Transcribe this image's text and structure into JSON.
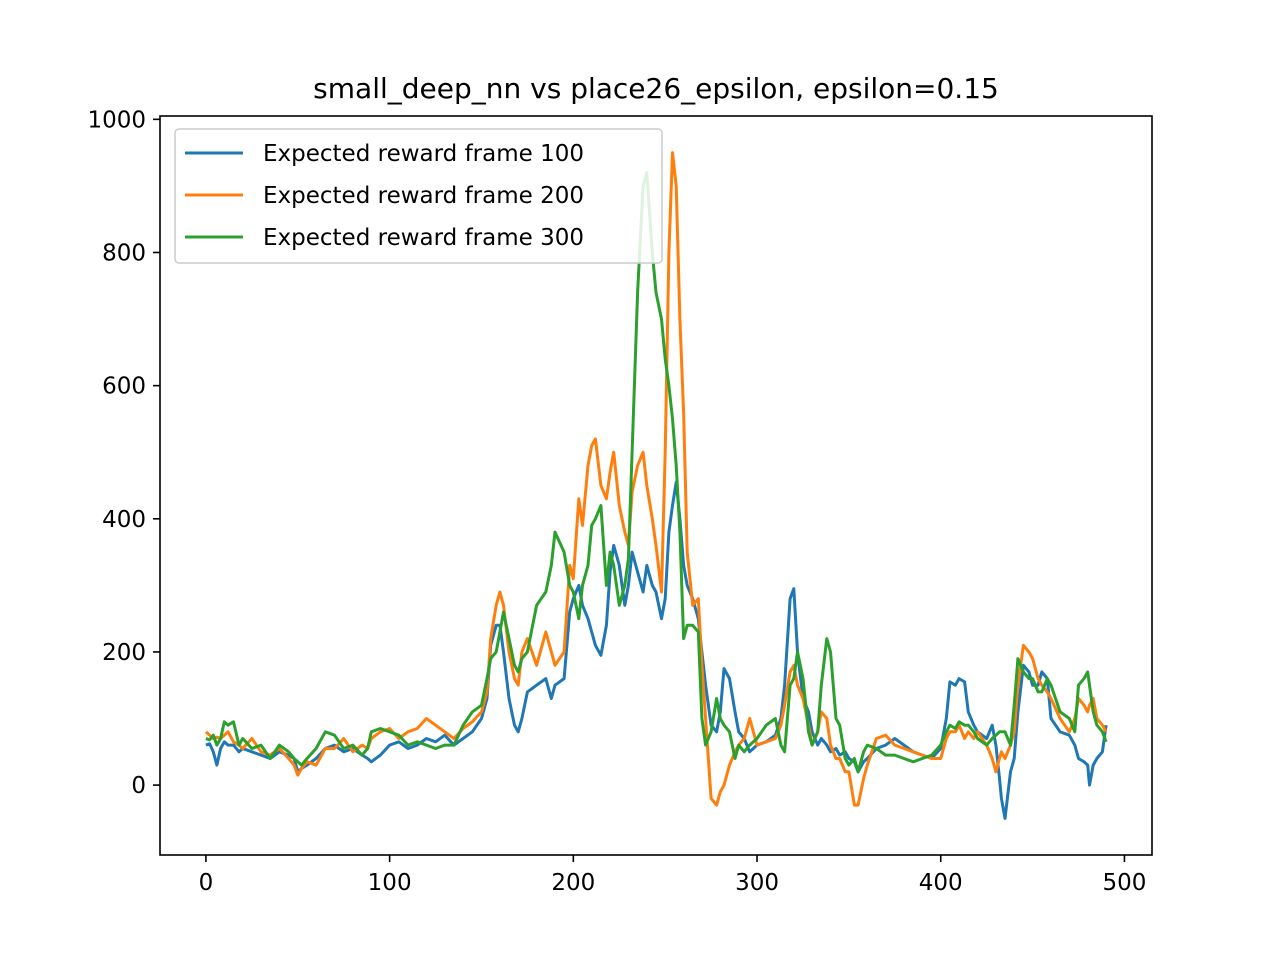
{
  "chart_data": {
    "type": "line",
    "title": "small_deep_nn vs place26_epsilon, epsilon=0.15",
    "xlabel": "",
    "ylabel": "",
    "xlim": [
      -25,
      515
    ],
    "ylim": [
      -105,
      1005
    ],
    "xticks": [
      0,
      100,
      200,
      300,
      400,
      500
    ],
    "yticks": [
      0,
      200,
      400,
      600,
      800,
      1000
    ],
    "legend_position": "top-left",
    "grid": false,
    "series": [
      {
        "name": "Expected reward frame 100",
        "color": "#1f77b4",
        "x": [
          0,
          2,
          4,
          6,
          8,
          10,
          12,
          15,
          18,
          20,
          25,
          30,
          35,
          40,
          45,
          48,
          50,
          52,
          55,
          60,
          65,
          70,
          75,
          80,
          85,
          88,
          90,
          95,
          100,
          105,
          110,
          115,
          120,
          125,
          130,
          135,
          140,
          145,
          150,
          153,
          155,
          158,
          160,
          162,
          165,
          168,
          170,
          172,
          175,
          180,
          185,
          188,
          190,
          195,
          198,
          200,
          203,
          205,
          208,
          210,
          212,
          215,
          218,
          220,
          222,
          225,
          228,
          230,
          232,
          235,
          238,
          240,
          243,
          245,
          248,
          250,
          252,
          254,
          256,
          258,
          260,
          262,
          265,
          268,
          270,
          272,
          275,
          278,
          280,
          282,
          285,
          288,
          290,
          293,
          296,
          300,
          305,
          310,
          313,
          315,
          318,
          320,
          322,
          325,
          328,
          330,
          333,
          335,
          338,
          340,
          343,
          345,
          348,
          350,
          353,
          355,
          358,
          360,
          365,
          370,
          375,
          380,
          385,
          390,
          395,
          400,
          403,
          405,
          408,
          410,
          413,
          415,
          418,
          420,
          425,
          428,
          430,
          432,
          433,
          435,
          438,
          440,
          442,
          445,
          448,
          450,
          453,
          455,
          458,
          460,
          465,
          470,
          473,
          475,
          478,
          480,
          481,
          483,
          485,
          488,
          490
        ],
        "values": [
          60,
          62,
          50,
          30,
          55,
          65,
          60,
          60,
          50,
          55,
          50,
          45,
          40,
          50,
          45,
          40,
          20,
          25,
          30,
          40,
          55,
          60,
          50,
          55,
          45,
          40,
          35,
          45,
          60,
          65,
          55,
          60,
          70,
          65,
          75,
          60,
          70,
          80,
          100,
          130,
          210,
          240,
          240,
          200,
          130,
          90,
          80,
          100,
          140,
          150,
          160,
          130,
          150,
          160,
          260,
          280,
          300,
          270,
          250,
          230,
          210,
          195,
          240,
          320,
          360,
          330,
          270,
          300,
          350,
          320,
          290,
          330,
          300,
          290,
          250,
          280,
          380,
          420,
          455,
          400,
          330,
          300,
          280,
          250,
          200,
          150,
          90,
          80,
          110,
          175,
          160,
          110,
          80,
          70,
          50,
          60,
          65,
          75,
          100,
          150,
          280,
          295,
          200,
          130,
          110,
          80,
          60,
          70,
          60,
          50,
          55,
          45,
          50,
          40,
          35,
          20,
          35,
          40,
          55,
          60,
          70,
          60,
          50,
          45,
          40,
          55,
          100,
          155,
          150,
          160,
          155,
          110,
          90,
          80,
          70,
          90,
          60,
          10,
          -20,
          -50,
          20,
          40,
          110,
          180,
          170,
          150,
          150,
          170,
          160,
          100,
          80,
          75,
          60,
          40,
          35,
          30,
          0,
          30,
          40,
          50,
          90
        ]
      },
      {
        "name": "Expected reward frame 200",
        "color": "#ff7f0e",
        "x": [
          0,
          2,
          4,
          6,
          8,
          10,
          12,
          15,
          18,
          20,
          25,
          30,
          35,
          40,
          45,
          48,
          50,
          52,
          55,
          60,
          65,
          70,
          75,
          80,
          85,
          88,
          90,
          95,
          100,
          105,
          110,
          115,
          120,
          125,
          130,
          135,
          140,
          145,
          150,
          153,
          155,
          158,
          160,
          162,
          165,
          168,
          170,
          172,
          175,
          180,
          185,
          188,
          190,
          195,
          198,
          200,
          203,
          205,
          208,
          210,
          212,
          215,
          218,
          220,
          222,
          225,
          228,
          230,
          232,
          235,
          238,
          240,
          243,
          245,
          248,
          250,
          252,
          254,
          256,
          258,
          260,
          262,
          265,
          268,
          270,
          272,
          275,
          278,
          280,
          282,
          285,
          288,
          290,
          293,
          296,
          300,
          305,
          310,
          313,
          315,
          318,
          320,
          322,
          325,
          328,
          330,
          333,
          335,
          338,
          340,
          343,
          345,
          348,
          350,
          353,
          355,
          358,
          360,
          365,
          370,
          375,
          380,
          385,
          390,
          395,
          400,
          403,
          405,
          408,
          410,
          413,
          415,
          418,
          420,
          425,
          428,
          430,
          432,
          433,
          435,
          438,
          440,
          442,
          445,
          448,
          450,
          453,
          455,
          458,
          460,
          465,
          470,
          473,
          475,
          478,
          480,
          481,
          483,
          485,
          488,
          490
        ],
        "values": [
          80,
          75,
          70,
          72,
          70,
          75,
          80,
          65,
          60,
          55,
          70,
          50,
          45,
          55,
          40,
          30,
          15,
          25,
          35,
          30,
          55,
          55,
          70,
          50,
          60,
          55,
          70,
          80,
          85,
          70,
          80,
          85,
          100,
          90,
          80,
          70,
          85,
          95,
          110,
          140,
          220,
          270,
          290,
          270,
          200,
          160,
          150,
          200,
          220,
          180,
          230,
          200,
          180,
          200,
          330,
          310,
          430,
          390,
          480,
          510,
          520,
          450,
          430,
          470,
          500,
          420,
          380,
          360,
          440,
          480,
          500,
          450,
          400,
          360,
          290,
          500,
          800,
          950,
          900,
          700,
          560,
          350,
          270,
          280,
          180,
          100,
          -20,
          -30,
          -10,
          0,
          30,
          50,
          60,
          70,
          100,
          60,
          65,
          70,
          90,
          120,
          170,
          180,
          150,
          130,
          90,
          60,
          80,
          110,
          100,
          60,
          40,
          40,
          20,
          20,
          -30,
          -30,
          10,
          30,
          70,
          75,
          60,
          55,
          50,
          45,
          40,
          40,
          70,
          80,
          80,
          90,
          70,
          80,
          70,
          80,
          60,
          40,
          20,
          40,
          50,
          40,
          60,
          80,
          150,
          210,
          200,
          190,
          160,
          150,
          140,
          130,
          100,
          80,
          100,
          130,
          120,
          110,
          120,
          130,
          100,
          90,
          80
        ]
      },
      {
        "name": "Expected reward frame 300",
        "color": "#2ca02c",
        "x": [
          0,
          2,
          4,
          6,
          8,
          10,
          12,
          15,
          18,
          20,
          25,
          30,
          35,
          40,
          45,
          48,
          50,
          52,
          55,
          60,
          65,
          70,
          75,
          80,
          85,
          88,
          90,
          95,
          100,
          105,
          110,
          115,
          120,
          125,
          130,
          135,
          140,
          145,
          150,
          153,
          155,
          158,
          160,
          162,
          165,
          168,
          170,
          172,
          175,
          180,
          185,
          188,
          190,
          195,
          198,
          200,
          203,
          205,
          208,
          210,
          212,
          215,
          218,
          220,
          222,
          225,
          228,
          230,
          232,
          235,
          238,
          240,
          243,
          245,
          248,
          250,
          252,
          254,
          256,
          258,
          260,
          262,
          265,
          268,
          270,
          272,
          275,
          278,
          280,
          282,
          285,
          288,
          290,
          293,
          296,
          300,
          305,
          310,
          313,
          315,
          318,
          320,
          322,
          325,
          328,
          330,
          333,
          335,
          338,
          340,
          343,
          345,
          348,
          350,
          353,
          355,
          358,
          360,
          365,
          370,
          375,
          380,
          385,
          390,
          395,
          400,
          403,
          405,
          408,
          410,
          413,
          415,
          418,
          420,
          425,
          428,
          430,
          432,
          433,
          435,
          438,
          440,
          442,
          445,
          448,
          450,
          453,
          455,
          458,
          460,
          465,
          470,
          473,
          475,
          478,
          480,
          481,
          483,
          485,
          488,
          490
        ],
        "values": [
          70,
          68,
          75,
          60,
          70,
          95,
          90,
          95,
          60,
          70,
          55,
          60,
          40,
          60,
          50,
          40,
          35,
          30,
          40,
          55,
          80,
          75,
          55,
          60,
          45,
          55,
          80,
          85,
          80,
          75,
          60,
          65,
          60,
          55,
          60,
          60,
          90,
          110,
          120,
          160,
          190,
          200,
          230,
          260,
          220,
          180,
          170,
          190,
          200,
          270,
          290,
          330,
          380,
          350,
          300,
          290,
          250,
          300,
          330,
          390,
          400,
          420,
          300,
          350,
          330,
          270,
          300,
          340,
          500,
          740,
          900,
          920,
          800,
          740,
          700,
          640,
          600,
          550,
          480,
          380,
          220,
          240,
          240,
          230,
          100,
          60,
          80,
          130,
          100,
          90,
          80,
          40,
          60,
          50,
          60,
          70,
          90,
          100,
          60,
          50,
          150,
          160,
          200,
          160,
          80,
          60,
          80,
          150,
          220,
          200,
          100,
          90,
          40,
          30,
          40,
          20,
          50,
          60,
          55,
          45,
          45,
          40,
          35,
          40,
          45,
          60,
          80,
          90,
          85,
          95,
          90,
          90,
          80,
          70,
          60,
          70,
          75,
          80,
          80,
          80,
          60,
          120,
          190,
          170,
          160,
          160,
          140,
          140,
          160,
          150,
          110,
          100,
          80,
          150,
          160,
          170,
          150,
          110,
          90,
          80,
          65
        ]
      }
    ]
  }
}
